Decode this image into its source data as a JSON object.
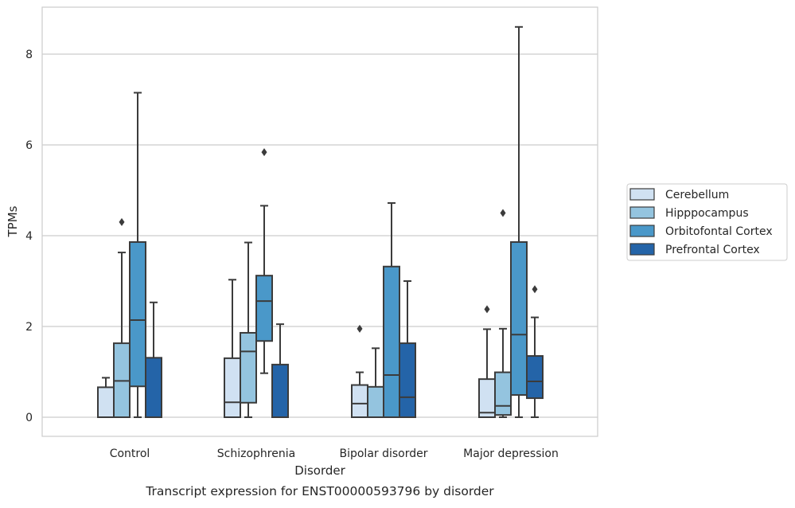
{
  "caption": "Transcript expression for ENST00000593796 by disorder",
  "chart_data": {
    "type": "boxplot",
    "xlabel": "Disorder",
    "ylabel": "TPMs",
    "ylim": [
      -0.4,
      9.05
    ],
    "yticks": [
      0,
      2,
      4,
      6,
      8
    ],
    "ytick_labels": [
      "0",
      "2",
      "4",
      "6",
      "8"
    ],
    "grid": "horizontal",
    "legend_position": "right",
    "categories": [
      "Control",
      "Schizophrenia",
      "Bipolar disorder",
      "Major depression"
    ],
    "series": [
      {
        "name": "Cerebellum",
        "color": "#d0e1f2",
        "boxes": [
          {
            "whislo": 0,
            "q1": 0,
            "med": 0,
            "q3": 0.66,
            "whishi": 0.87,
            "fliers": []
          },
          {
            "whislo": 0,
            "q1": 0,
            "med": 0.33,
            "q3": 1.3,
            "whishi": 3.03,
            "fliers": []
          },
          {
            "whislo": 0,
            "q1": 0,
            "med": 0.3,
            "q3": 0.71,
            "whishi": 0.99,
            "fliers": [
              1.95
            ]
          },
          {
            "whislo": 0,
            "q1": 0,
            "med": 0.1,
            "q3": 0.84,
            "whishi": 1.94,
            "fliers": [
              2.38
            ]
          }
        ]
      },
      {
        "name": "Hipppocampus",
        "color": "#94c4df",
        "boxes": [
          {
            "whislo": 0,
            "q1": 0,
            "med": 0.8,
            "q3": 1.63,
            "whishi": 3.63,
            "fliers": [
              4.3
            ]
          },
          {
            "whislo": 0,
            "q1": 0.32,
            "med": 1.45,
            "q3": 1.86,
            "whishi": 3.85,
            "fliers": []
          },
          {
            "whislo": 0,
            "q1": 0,
            "med": 0,
            "q3": 0.67,
            "whishi": 1.52,
            "fliers": []
          },
          {
            "whislo": 0,
            "q1": 0.05,
            "med": 0.25,
            "q3": 0.99,
            "whishi": 1.95,
            "fliers": [
              4.5
            ]
          }
        ]
      },
      {
        "name": "Orbitofontal Cortex",
        "color": "#4a98c9",
        "boxes": [
          {
            "whislo": 0,
            "q1": 0.68,
            "med": 2.14,
            "q3": 3.86,
            "whishi": 7.15,
            "fliers": []
          },
          {
            "whislo": 0.97,
            "q1": 1.68,
            "med": 2.56,
            "q3": 3.12,
            "whishi": 4.66,
            "fliers": [
              5.84
            ]
          },
          {
            "whislo": 0,
            "q1": 0,
            "med": 0.93,
            "q3": 3.32,
            "whishi": 4.72,
            "fliers": []
          },
          {
            "whislo": 0,
            "q1": 0.49,
            "med": 1.82,
            "q3": 3.86,
            "whishi": 8.6,
            "fliers": []
          }
        ]
      },
      {
        "name": "Prefrontal Cortex",
        "color": "#2464a8",
        "boxes": [
          {
            "whislo": 0,
            "q1": 0,
            "med": 0,
            "q3": 1.31,
            "whishi": 2.53,
            "fliers": []
          },
          {
            "whislo": 0,
            "q1": 0,
            "med": 0,
            "q3": 1.16,
            "whishi": 2.05,
            "fliers": []
          },
          {
            "whislo": 0,
            "q1": 0,
            "med": 0.44,
            "q3": 1.63,
            "whishi": 3.0,
            "fliers": []
          },
          {
            "whislo": 0,
            "q1": 0.42,
            "med": 0.79,
            "q3": 1.35,
            "whishi": 2.2,
            "fliers": [
              2.82
            ]
          }
        ]
      }
    ]
  }
}
